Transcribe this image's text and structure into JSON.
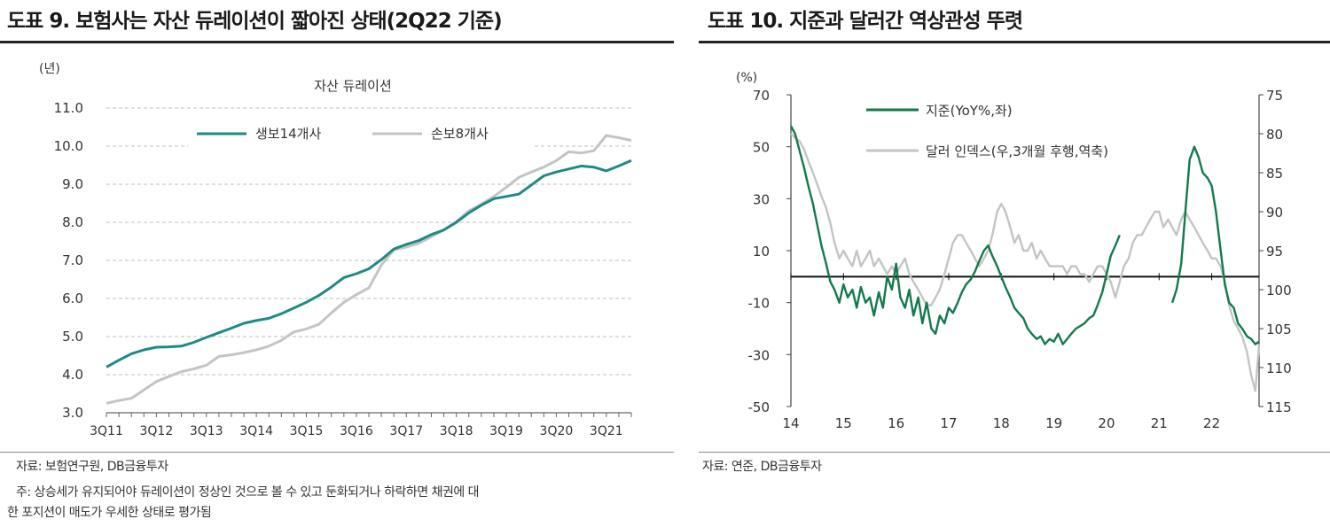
{
  "left_panel": {
    "title": "도표 9. 보험사는 자산 듀레이션이 짧아진 상태(2Q22 기준)",
    "source": "자료: 보험연구원, DB금융투자",
    "note_line1": " 주: 상승세가 유지되어야 듀레이션이 정상인 것으로 볼 수 있고 둔화되거나 하락하면 채권에 대",
    "note_line2": "한 포지션이 매도가 우세한 상태로 평가됨"
  },
  "right_panel": {
    "title": "도표 10. 지준과 달러간 역상관성 뚜렷",
    "source": "자료: 연준, DB금융투자"
  },
  "colors": {
    "teal": "#1e8a84",
    "green": "#127a4b",
    "gray": "#c4c4c4",
    "grid": "#bdbdbd"
  },
  "chart_data": [
    {
      "type": "line",
      "title": "자산 듀레이션",
      "ylabel": "(년)",
      "ylim": [
        3.0,
        11.0
      ],
      "yticks": [
        "3.0",
        "4.0",
        "5.0",
        "6.0",
        "7.0",
        "8.0",
        "9.0",
        "10.0",
        "11.0"
      ],
      "xtick_labels": [
        "3Q11",
        "3Q12",
        "3Q13",
        "3Q14",
        "3Q15",
        "3Q16",
        "3Q17",
        "3Q18",
        "3Q19",
        "3Q20",
        "3Q21"
      ],
      "x_period": "quarterly, 3Q11 to 2Q22",
      "grid": true,
      "legend_position": "top",
      "series": [
        {
          "name": "생보14개사",
          "color": "#1e8a84",
          "values": [
            4.2,
            4.38,
            4.55,
            4.65,
            4.72,
            4.73,
            4.75,
            4.85,
            4.98,
            5.1,
            5.22,
            5.35,
            5.42,
            5.48,
            5.6,
            5.75,
            5.9,
            6.08,
            6.3,
            6.55,
            6.65,
            6.78,
            7.02,
            7.3,
            7.42,
            7.52,
            7.68,
            7.8,
            8.0,
            8.25,
            8.45,
            8.62,
            8.68,
            8.74,
            8.98,
            9.22,
            9.32,
            9.4,
            9.48,
            9.45,
            9.35,
            9.48,
            9.62
          ]
        },
        {
          "name": "손보8개사",
          "color": "#c4c4c4",
          "values": [
            3.25,
            3.32,
            3.38,
            3.6,
            3.82,
            3.95,
            4.08,
            4.15,
            4.25,
            4.48,
            4.52,
            4.58,
            4.65,
            4.75,
            4.9,
            5.12,
            5.2,
            5.32,
            5.62,
            5.9,
            6.1,
            6.28,
            6.88,
            7.28,
            7.35,
            7.45,
            7.62,
            7.8,
            8.02,
            8.3,
            8.48,
            8.68,
            8.92,
            9.18,
            9.32,
            9.45,
            9.62,
            9.85,
            9.82,
            9.88,
            10.28,
            10.22,
            10.15
          ]
        }
      ]
    },
    {
      "type": "line",
      "ylabel": "(%)",
      "ylim": [
        -50,
        70
      ],
      "yticks": [
        -50,
        -30,
        -10,
        10,
        30,
        50,
        70
      ],
      "y2lim": [
        75,
        115
      ],
      "y2_inverted": true,
      "y2ticks": [
        75,
        80,
        85,
        90,
        95,
        100,
        105,
        110,
        115
      ],
      "xtick_labels": [
        "14",
        "15",
        "16",
        "17",
        "18",
        "19",
        "20",
        "21",
        "22"
      ],
      "x_range": [
        2014.0,
        2022.9
      ],
      "legend_position": "top-left",
      "series": [
        {
          "name": "지준(YoY%,좌)",
          "color": "#127a4b",
          "axis": "left",
          "x": [
            2014.0,
            2014.08,
            2014.17,
            2014.25,
            2014.33,
            2014.42,
            2014.5,
            2014.58,
            2014.67,
            2014.75,
            2014.83,
            2014.92,
            2015.0,
            2015.08,
            2015.17,
            2015.25,
            2015.33,
            2015.42,
            2015.5,
            2015.58,
            2015.67,
            2015.75,
            2015.83,
            2015.92,
            2016.0,
            2016.08,
            2016.17,
            2016.25,
            2016.33,
            2016.42,
            2016.5,
            2016.58,
            2016.67,
            2016.75,
            2016.83,
            2016.92,
            2017.0,
            2017.08,
            2017.17,
            2017.25,
            2017.33,
            2017.42,
            2017.5,
            2017.58,
            2017.67,
            2017.75,
            2017.83,
            2017.92,
            2018.0,
            2018.08,
            2018.17,
            2018.25,
            2018.33,
            2018.42,
            2018.5,
            2018.58,
            2018.67,
            2018.75,
            2018.83,
            2018.92,
            2019.0,
            2019.08,
            2019.17,
            2019.25,
            2019.33,
            2019.42,
            2019.5,
            2019.58,
            2019.67,
            2019.75,
            2019.83,
            2019.92,
            2020.0,
            2020.08,
            2020.17,
            2020.25
          ],
          "values": [
            58,
            55,
            48,
            42,
            35,
            28,
            20,
            12,
            5,
            -2,
            -5,
            -10,
            -3,
            -8,
            -5,
            -12,
            -4,
            -10,
            -8,
            -15,
            -6,
            -12,
            0,
            -5,
            5,
            -8,
            -12,
            -5,
            -15,
            -8,
            -18,
            -10,
            -20,
            -22,
            -15,
            -18,
            -12,
            -14,
            -10,
            -6,
            -3,
            -1,
            2,
            6,
            10,
            12,
            8,
            4,
            0,
            -4,
            -8,
            -12,
            -14,
            -16,
            -20,
            -22,
            -24,
            -23,
            -26,
            -24,
            -25,
            -22,
            -26,
            -24,
            -22,
            -20,
            -19,
            -18,
            -16,
            -15,
            -11,
            -6,
            1,
            8,
            12,
            16
          ]
        },
        {
          "name": "지준(YoY%,좌)",
          "color": "#127a4b",
          "axis": "left",
          "x": [
            2021.25,
            2021.33,
            2021.42,
            2021.5,
            2021.58,
            2021.67,
            2021.75,
            2021.83,
            2021.92,
            2022.0,
            2022.08,
            2022.17,
            2022.25,
            2022.33,
            2022.42,
            2022.5,
            2022.58,
            2022.67,
            2022.75,
            2022.83,
            2022.9
          ],
          "values": [
            -10,
            -5,
            5,
            25,
            45,
            50,
            46,
            40,
            38,
            35,
            25,
            10,
            -3,
            -10,
            -12,
            -18,
            -20,
            -23,
            -24,
            -26,
            -25
          ]
        },
        {
          "name": "달러 인덱스(우,3개월 후행,역축)",
          "color": "#c4c4c4",
          "axis": "right",
          "x": [
            2014.0,
            2014.08,
            2014.17,
            2014.25,
            2014.33,
            2014.42,
            2014.5,
            2014.58,
            2014.67,
            2014.75,
            2014.83,
            2014.92,
            2015.0,
            2015.08,
            2015.17,
            2015.25,
            2015.33,
            2015.42,
            2015.5,
            2015.58,
            2015.67,
            2015.75,
            2015.83,
            2015.92,
            2016.0,
            2016.08,
            2016.17,
            2016.25,
            2016.33,
            2016.42,
            2016.5,
            2016.58,
            2016.67,
            2016.75,
            2016.83,
            2016.92,
            2017.0,
            2017.08,
            2017.17,
            2017.25,
            2017.33,
            2017.42,
            2017.5,
            2017.58,
            2017.67,
            2017.75,
            2017.83,
            2017.92,
            2018.0,
            2018.08,
            2018.17,
            2018.25,
            2018.33,
            2018.42,
            2018.5,
            2018.58,
            2018.67,
            2018.75,
            2018.83,
            2018.92,
            2019.0,
            2019.08,
            2019.17,
            2019.25,
            2019.33,
            2019.42,
            2019.5,
            2019.58,
            2019.67,
            2019.75,
            2019.83,
            2019.92,
            2020.0,
            2020.08,
            2020.17,
            2020.25,
            2020.33,
            2020.42,
            2020.5,
            2020.58,
            2020.67,
            2020.75,
            2020.83,
            2020.92,
            2021.0,
            2021.08,
            2021.17,
            2021.25,
            2021.33,
            2021.42,
            2021.5,
            2021.58,
            2021.67,
            2021.75,
            2021.83,
            2021.92,
            2022.0,
            2022.08,
            2022.17,
            2022.25,
            2022.33,
            2022.42,
            2022.5,
            2022.58,
            2022.67,
            2022.75,
            2022.83,
            2022.9
          ],
          "values": [
            80,
            80.5,
            81,
            82,
            83.5,
            85,
            86.5,
            88,
            89.5,
            91.5,
            94,
            96,
            95,
            96,
            97,
            95,
            97,
            96,
            95,
            97,
            96,
            97,
            98,
            97,
            98,
            97,
            96,
            98,
            99,
            100,
            101,
            102,
            102,
            101,
            100,
            98,
            96,
            94,
            93,
            93,
            94,
            95,
            96,
            97,
            96,
            95,
            93,
            90,
            89,
            90,
            92,
            94,
            93,
            95,
            95,
            94,
            96,
            95,
            96,
            97,
            97,
            97,
            97,
            98,
            97,
            97,
            98,
            98,
            99,
            98,
            97,
            97,
            98,
            99,
            101,
            99,
            97,
            96,
            94,
            93,
            93,
            92,
            91,
            90,
            90,
            92,
            91,
            92,
            93,
            91,
            90,
            91,
            92,
            93,
            94,
            95,
            96,
            96,
            97,
            99,
            102,
            104,
            105,
            106,
            108,
            111,
            113,
            107
          ]
        }
      ]
    }
  ]
}
